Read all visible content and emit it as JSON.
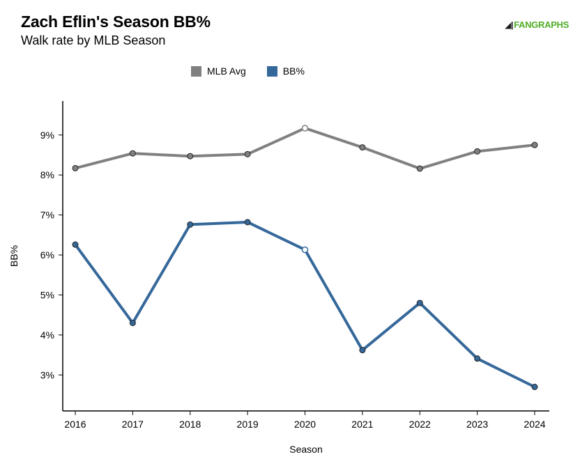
{
  "header": {
    "title": "Zach Eflin's Season BB%",
    "subtitle": "Walk rate by MLB Season",
    "logo_text": "FANGRAPHS"
  },
  "colors": {
    "mlb_avg": "#808080",
    "bb_pct": "#35689a",
    "logo_green": "#50ae26"
  },
  "chart_data": {
    "type": "line",
    "title": "Zach Eflin's Season BB%",
    "subtitle": "Walk rate by MLB Season",
    "xlabel": "Season",
    "ylabel": "BB%",
    "x": [
      "2016",
      "2017",
      "2018",
      "2019",
      "2020",
      "2021",
      "2022",
      "2023",
      "2024"
    ],
    "ylim": [
      2.1,
      9.85
    ],
    "yticks": [
      3,
      4,
      5,
      6,
      7,
      8,
      9
    ],
    "ytick_labels": [
      "3%",
      "4%",
      "5%",
      "6%",
      "7%",
      "8%",
      "9%"
    ],
    "legend_position": "top-center",
    "grid": false,
    "series": [
      {
        "name": "MLB Avg",
        "color": "#808080",
        "values": [
          8.17,
          8.54,
          8.47,
          8.52,
          9.17,
          8.69,
          8.16,
          8.59,
          8.75
        ]
      },
      {
        "name": "BB%",
        "color": "#35689a",
        "values": [
          6.26,
          4.3,
          6.76,
          6.82,
          6.13,
          3.62,
          4.8,
          3.41,
          2.7
        ]
      }
    ],
    "hollow_points_x": [
      "2020"
    ]
  }
}
